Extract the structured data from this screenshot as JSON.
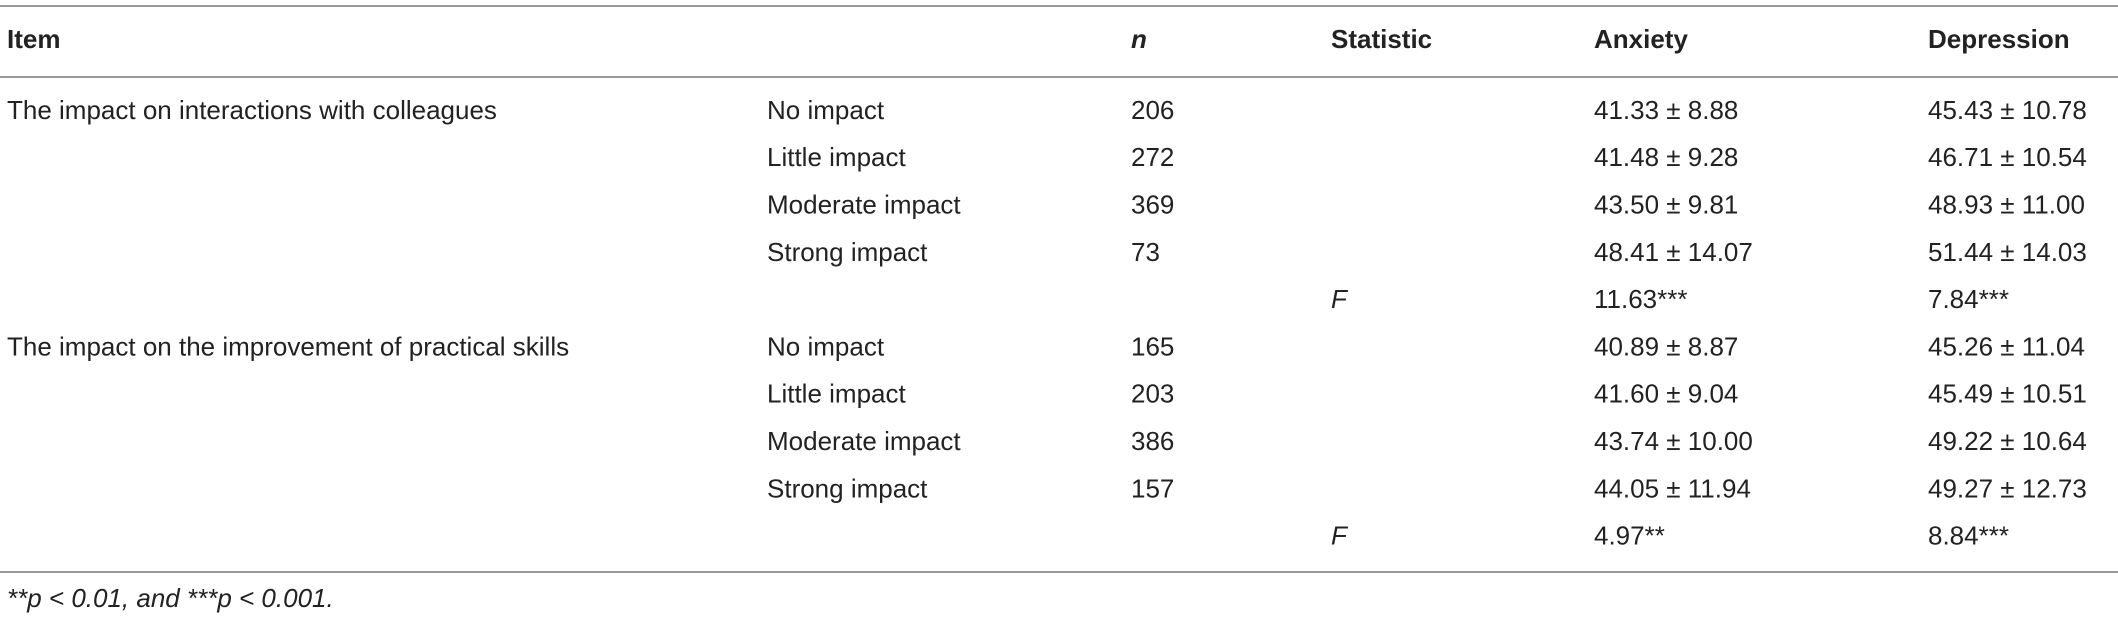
{
  "table": {
    "header": [
      "Item",
      "n",
      "Statistic",
      "Anxiety",
      "Depression"
    ],
    "groups": [
      {
        "item": "The impact on interactions with colleagues",
        "levels": [
          {
            "label": "No impact",
            "n": 206,
            "anxiety": "41.33 ± 8.88",
            "depression": "45.43 ± 10.78"
          },
          {
            "label": "Little impact",
            "n": 272,
            "anxiety": "41.48 ± 9.28",
            "depression": "46.71 ± 10.54"
          },
          {
            "label": "Moderate impact",
            "n": 369,
            "anxiety": "43.50 ± 9.81",
            "depression": "48.93 ± 11.00"
          },
          {
            "label": "Strong impact",
            "n": 73,
            "anxiety": "48.41 ± 14.07",
            "depression": "51.44 ± 14.03"
          }
        ],
        "statistic": {
          "label": "F",
          "anxiety": "11.63***",
          "depression": "7.84***"
        }
      },
      {
        "item": "The impact on the improvement of practical skills",
        "levels": [
          {
            "label": "No impact",
            "n": 165,
            "anxiety": "40.89 ± 8.87",
            "depression": "45.26 ± 11.04"
          },
          {
            "label": "Little impact",
            "n": 203,
            "anxiety": "41.60 ± 9.04",
            "depression": "45.49 ± 10.51"
          },
          {
            "label": "Moderate impact",
            "n": 386,
            "anxiety": "43.74 ± 10.00",
            "depression": "49.22 ± 10.64"
          },
          {
            "label": "Strong impact",
            "n": 157,
            "anxiety": "44.05 ± 11.94",
            "depression": "49.27 ± 12.73"
          }
        ],
        "statistic": {
          "label": "F",
          "anxiety": "4.97**",
          "depression": "8.84***"
        }
      }
    ],
    "footnote": "**p < 0.01, and ***p < 0.001."
  }
}
